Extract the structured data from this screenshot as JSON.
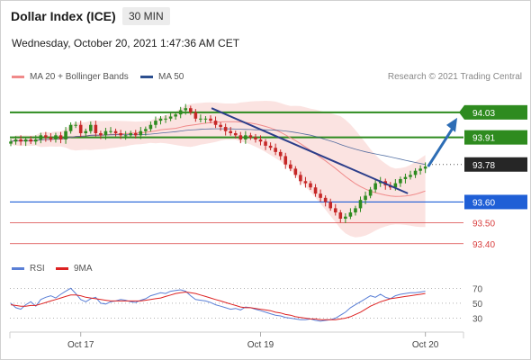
{
  "header": {
    "title": "Dollar Index (ICE)",
    "timeframe": "30 MIN",
    "datetime": "Wednesday, October 20, 2021 1:47:36 AM CET"
  },
  "legend": {
    "ma20": "MA 20 + Bollinger Bands",
    "ma50": "MA 50",
    "credit": "Research © 2021 Trading Central",
    "ma20_color": "#f08a8a",
    "ma50_color": "#2c4f8f"
  },
  "rsi_legend": {
    "rsi": "RSI",
    "ma9": "9MA",
    "rsi_color": "#5a7fd6",
    "ma9_color": "#dd2222"
  },
  "chart_data": [
    {
      "type": "candlestick",
      "title": "Dollar Index (ICE)",
      "ylim": [
        93.33,
        94.12
      ],
      "x_ticks": [
        {
          "label": "Oct 17",
          "index": 14
        },
        {
          "label": "Oct 19",
          "index": 50
        },
        {
          "label": "Oct 20",
          "index": 83
        }
      ],
      "closes": [
        93.89,
        93.9,
        93.89,
        93.9,
        93.89,
        93.9,
        93.92,
        93.91,
        93.9,
        93.92,
        93.9,
        93.94,
        93.97,
        93.97,
        93.93,
        93.94,
        93.97,
        93.93,
        93.92,
        93.94,
        93.94,
        93.93,
        93.92,
        93.92,
        93.93,
        93.92,
        93.94,
        93.95,
        93.97,
        93.99,
        94.0,
        94.0,
        94.01,
        94.02,
        94.04,
        94.05,
        94.03,
        94.0,
        94.0,
        94.0,
        93.99,
        93.97,
        93.96,
        93.94,
        93.93,
        93.92,
        93.9,
        93.92,
        93.91,
        93.9,
        93.89,
        93.87,
        93.86,
        93.84,
        93.82,
        93.78,
        93.76,
        93.73,
        93.7,
        93.69,
        93.67,
        93.64,
        93.62,
        93.6,
        93.57,
        93.55,
        93.52,
        93.53,
        93.55,
        93.57,
        93.61,
        93.63,
        93.66,
        93.69,
        93.7,
        93.68,
        93.67,
        93.69,
        93.71,
        93.72,
        93.73,
        93.75,
        93.76,
        93.77
      ],
      "levels": [
        {
          "value": 94.03,
          "label": "94.03",
          "role": "target",
          "color": "#2e8b1f"
        },
        {
          "value": 93.91,
          "label": "93.91",
          "role": "resistance",
          "color": "#2e8b1f"
        },
        {
          "value": 93.78,
          "label": "93.78",
          "role": "last",
          "color": "#262626"
        },
        {
          "value": 93.6,
          "label": "93.60",
          "role": "pivot",
          "color": "#1f5fd6"
        },
        {
          "value": 93.5,
          "label": "93.50",
          "role": "support",
          "color": "#d94040"
        },
        {
          "value": 93.4,
          "label": "93.40",
          "role": "support",
          "color": "#d94040"
        }
      ],
      "trendline": {
        "from": {
          "index": 51,
          "value": 94.05
        },
        "to": {
          "index": 73,
          "value": 93.65
        },
        "color": "#2c3e8a"
      }
    },
    {
      "type": "line",
      "title": "RSI",
      "ylim": [
        15,
        80
      ],
      "yticks": [
        30,
        50,
        70
      ],
      "series": [
        {
          "name": "RSI",
          "color": "#5a7fd6",
          "values": [
            50,
            44,
            42,
            48,
            52,
            46,
            55,
            58,
            60,
            57,
            62,
            66,
            70,
            63,
            55,
            52,
            56,
            58,
            50,
            49,
            52,
            53,
            55,
            54,
            52,
            51,
            54,
            56,
            60,
            62,
            64,
            63,
            66,
            67,
            68,
            66,
            60,
            55,
            54,
            53,
            51,
            48,
            46,
            44,
            42,
            43,
            41,
            45,
            44,
            42,
            40,
            38,
            36,
            34,
            33,
            31,
            30,
            29,
            28,
            28,
            29,
            27,
            26,
            27,
            28,
            30,
            34,
            38,
            44,
            48,
            52,
            56,
            60,
            58,
            62,
            58,
            56,
            60,
            62,
            63,
            64,
            64,
            65,
            66
          ]
        },
        {
          "name": "9MA",
          "color": "#dd2222",
          "values": [
            48,
            47,
            46,
            46,
            47,
            47,
            49,
            51,
            53,
            55,
            57,
            59,
            61,
            61,
            60,
            58,
            57,
            56,
            55,
            54,
            53,
            53,
            53,
            53,
            53,
            53,
            53,
            54,
            55,
            56,
            57,
            59,
            61,
            63,
            64,
            65,
            64,
            63,
            61,
            59,
            57,
            55,
            53,
            51,
            49,
            47,
            45,
            44,
            44,
            43,
            42,
            41,
            40,
            38,
            37,
            35,
            34,
            32,
            31,
            30,
            29,
            29,
            28,
            28,
            28,
            28,
            29,
            30,
            32,
            35,
            38,
            42,
            46,
            49,
            52,
            54,
            56,
            57,
            58,
            59,
            60,
            61,
            62,
            63
          ]
        }
      ]
    }
  ]
}
